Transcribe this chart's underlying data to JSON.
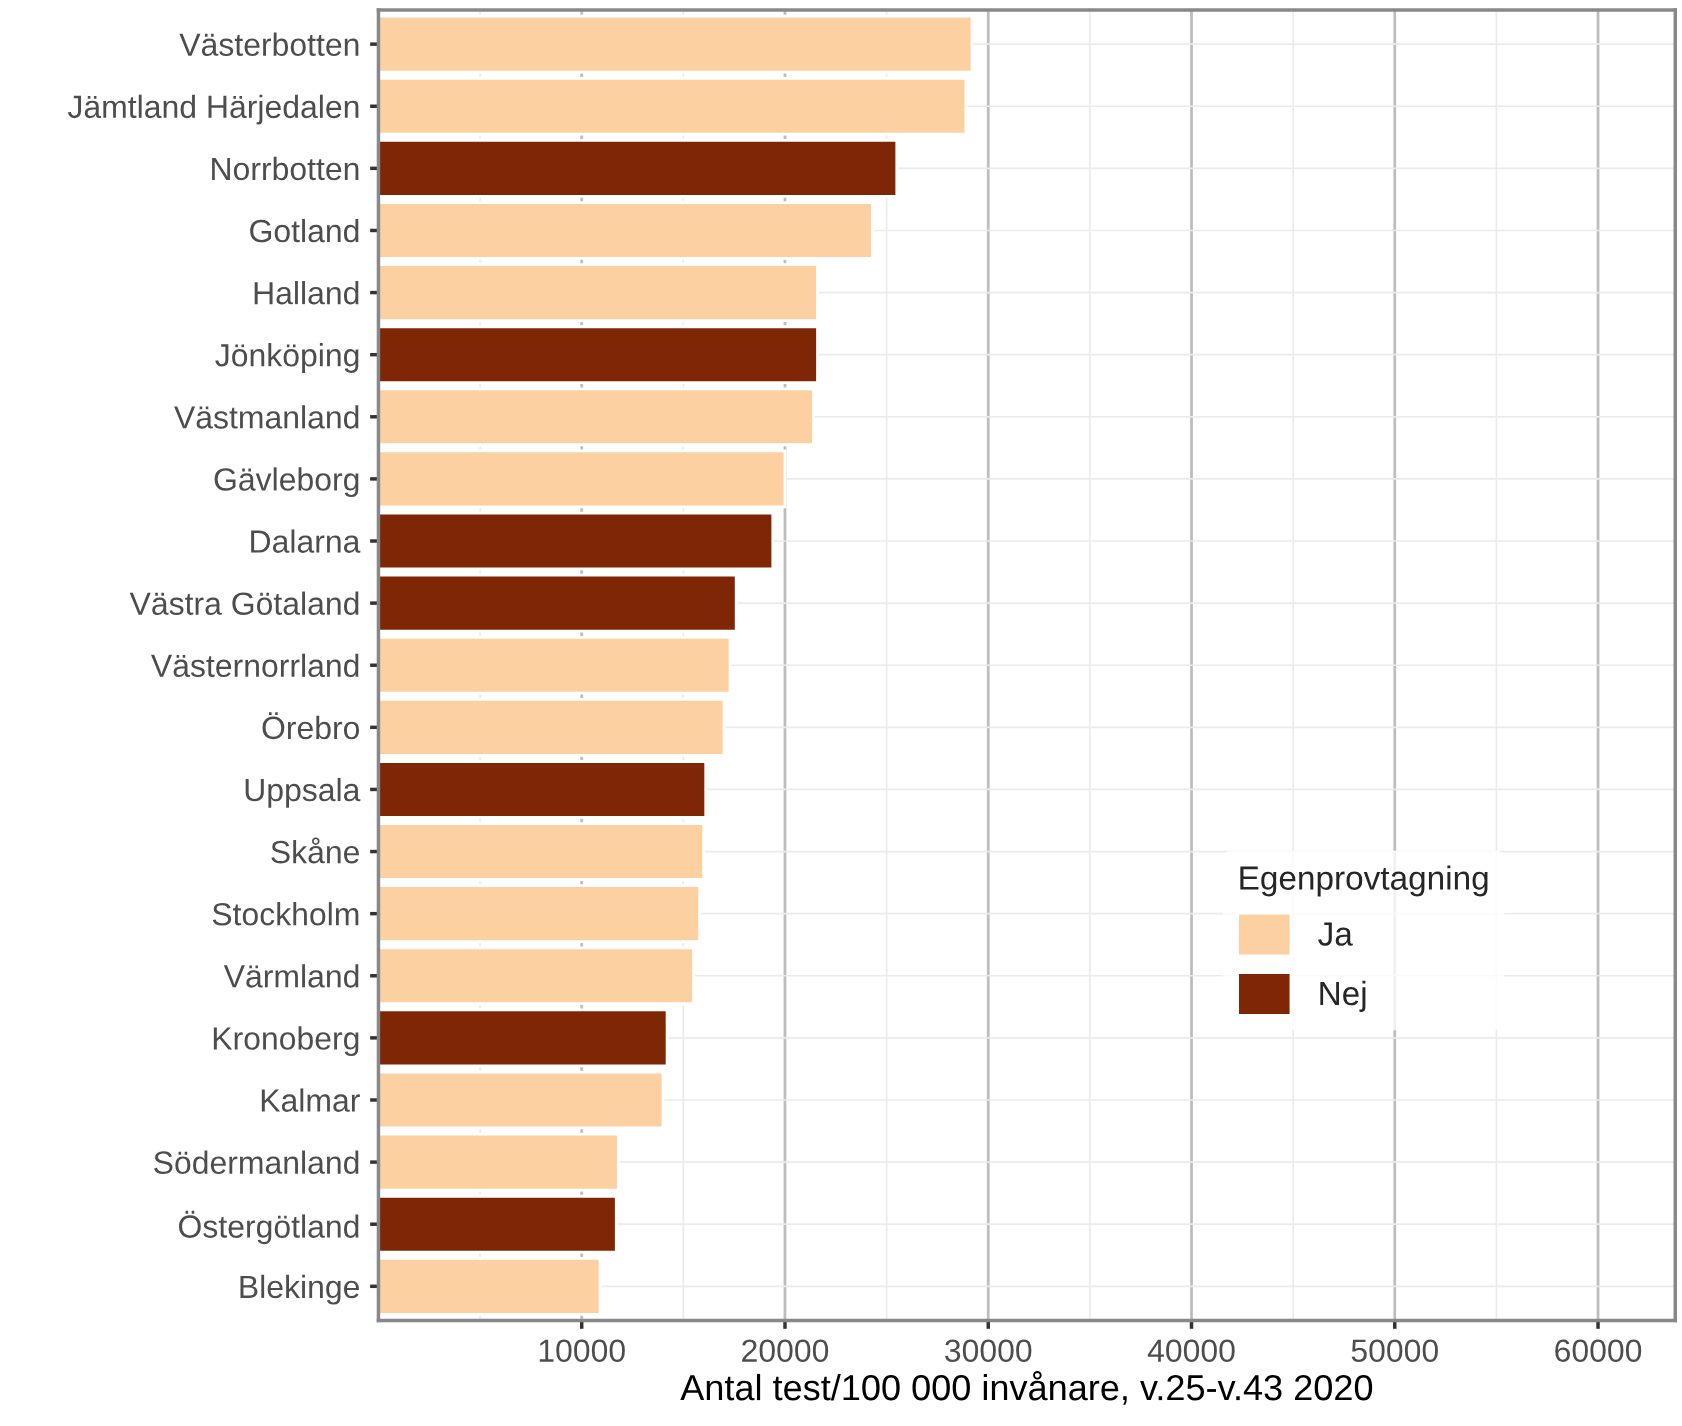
{
  "chart_data": {
    "type": "bar",
    "orientation": "horizontal",
    "xlabel": "Antal test/100 000 invånare, v.25-v.43 2020",
    "legend_title": "Egenprovtagning",
    "categories": [
      "Västerbotten",
      "Jämtland Härjedalen",
      "Norrbotten",
      "Gotland",
      "Halland",
      "Jönköping",
      "Västmanland",
      "Gävleborg",
      "Dalarna",
      "Västra Götaland",
      "Västernorrland",
      "Örebro",
      "Uppsala",
      "Skåne",
      "Stockholm",
      "Värmland",
      "Kronoberg",
      "Kalmar",
      "Södermanland",
      "Östergötland",
      "Blekinge"
    ],
    "series": [
      {
        "name": "Ja",
        "color": "#fdd0a2",
        "values": [
          29200,
          28900,
          null,
          24300,
          21600,
          null,
          21400,
          20000,
          null,
          null,
          17300,
          17000,
          null,
          16000,
          15800,
          15500,
          null,
          14000,
          11800,
          null,
          10900
        ]
      },
      {
        "name": "Nej",
        "color": "#7f2704",
        "values": [
          null,
          null,
          25500,
          null,
          null,
          21600,
          null,
          null,
          19400,
          17600,
          null,
          null,
          16100,
          null,
          null,
          null,
          14200,
          null,
          null,
          11700,
          null
        ]
      }
    ],
    "xlim": [
      0,
      63800
    ],
    "xticks": [
      10000,
      20000,
      30000,
      40000,
      50000,
      60000
    ],
    "grid": true,
    "legend": "right"
  }
}
